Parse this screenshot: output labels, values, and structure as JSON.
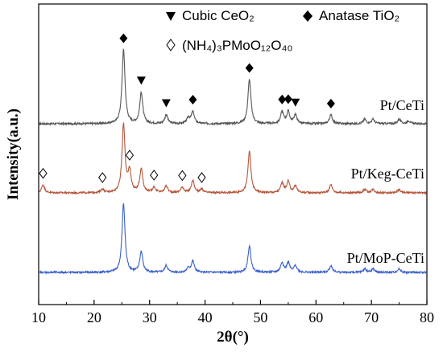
{
  "chart_data": {
    "type": "line",
    "title": "",
    "xlabel": "2θ(°)",
    "ylabel": "Intensity(a.u.)",
    "xlim": [
      10,
      80
    ],
    "x_ticks": [
      10,
      20,
      30,
      40,
      50,
      60,
      70,
      80
    ],
    "y_ticks_shown": false,
    "legend": {
      "placement": "top",
      "entries": [
        {
          "marker": "filled-down-triangle",
          "label": "Cubic CeO₂"
        },
        {
          "marker": "filled-diamond",
          "label": "Anatase TiO₂"
        },
        {
          "marker": "open-diamond",
          "label": "(NH₄)₃PMoO₁₂O₄₀"
        }
      ]
    },
    "series": [
      {
        "name": "Pt/CeTi",
        "color": "#555555",
        "peaks": [
          [
            25.3,
            100
          ],
          [
            28.5,
            42
          ],
          [
            33.0,
            12
          ],
          [
            37.0,
            8
          ],
          [
            37.8,
            16
          ],
          [
            48.0,
            60
          ],
          [
            53.9,
            16
          ],
          [
            55.0,
            16
          ],
          [
            56.3,
            12
          ],
          [
            62.7,
            12
          ],
          [
            68.8,
            6
          ],
          [
            70.3,
            6
          ],
          [
            75.0,
            6
          ],
          [
            76.7,
            4
          ]
        ],
        "markers": [
          {
            "x": 25.3,
            "symbol": "filled-diamond"
          },
          {
            "x": 28.5,
            "symbol": "filled-down-triangle"
          },
          {
            "x": 33.0,
            "symbol": "filled-down-triangle"
          },
          {
            "x": 37.8,
            "symbol": "filled-diamond"
          },
          {
            "x": 48.0,
            "symbol": "filled-diamond"
          },
          {
            "x": 53.9,
            "symbol": "filled-diamond"
          },
          {
            "x": 55.0,
            "symbol": "filled-diamond"
          },
          {
            "x": 56.3,
            "symbol": "filled-down-triangle"
          },
          {
            "x": 62.7,
            "symbol": "filled-diamond"
          }
        ]
      },
      {
        "name": "Pt/Keg-CeTi",
        "color": "#b5553a",
        "peaks": [
          [
            10.8,
            12
          ],
          [
            21.5,
            5
          ],
          [
            25.3,
            100
          ],
          [
            26.4,
            30
          ],
          [
            28.5,
            35
          ],
          [
            30.8,
            8
          ],
          [
            33.0,
            10
          ],
          [
            35.9,
            8
          ],
          [
            37.8,
            18
          ],
          [
            39.4,
            5
          ],
          [
            48.0,
            60
          ],
          [
            53.9,
            14
          ],
          [
            55.0,
            16
          ],
          [
            56.3,
            10
          ],
          [
            62.7,
            12
          ],
          [
            68.8,
            5
          ],
          [
            70.3,
            5
          ],
          [
            75.0,
            5
          ]
        ],
        "markers": [
          {
            "x": 10.8,
            "symbol": "open-diamond"
          },
          {
            "x": 21.5,
            "symbol": "open-diamond"
          },
          {
            "x": 26.4,
            "symbol": "open-diamond"
          },
          {
            "x": 30.8,
            "symbol": "open-diamond"
          },
          {
            "x": 35.9,
            "symbol": "open-diamond"
          },
          {
            "x": 39.4,
            "symbol": "open-diamond"
          }
        ]
      },
      {
        "name": "Pt/MoP-CeTi",
        "color": "#3a5fc8",
        "peaks": [
          [
            25.3,
            100
          ],
          [
            28.5,
            30
          ],
          [
            33.0,
            10
          ],
          [
            37.0,
            6
          ],
          [
            37.8,
            16
          ],
          [
            48.0,
            38
          ],
          [
            53.9,
            14
          ],
          [
            55.0,
            14
          ],
          [
            56.3,
            10
          ],
          [
            62.7,
            10
          ],
          [
            68.8,
            5
          ],
          [
            70.3,
            5
          ],
          [
            75.0,
            5
          ]
        ],
        "markers": []
      }
    ]
  }
}
